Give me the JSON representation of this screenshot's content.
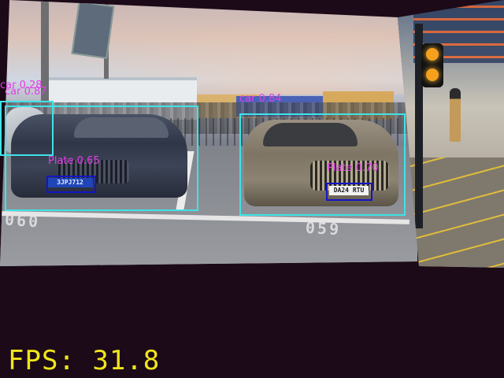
{
  "detections": {
    "car_far_left_top": {
      "label": "car 0.28"
    },
    "car_far_left": {
      "label": "car 0.87"
    },
    "car_right": {
      "label": "car 0.84"
    },
    "plate_left": {
      "label": "Plate 0.65",
      "text": "3JPJ712"
    },
    "plate_right": {
      "label": "Plate 0.70",
      "text": "DA24 RTU"
    }
  },
  "scene_text": {
    "ground_left": "060",
    "ground_right": "059"
  },
  "overlay": {
    "fps": "FPS: 31.8"
  },
  "colors": {
    "car_box": "#3fe3e6",
    "plate_box": "#1414c8",
    "label": "#e53ee9",
    "fps": "#f0e61a",
    "background": "#1c0a18"
  }
}
